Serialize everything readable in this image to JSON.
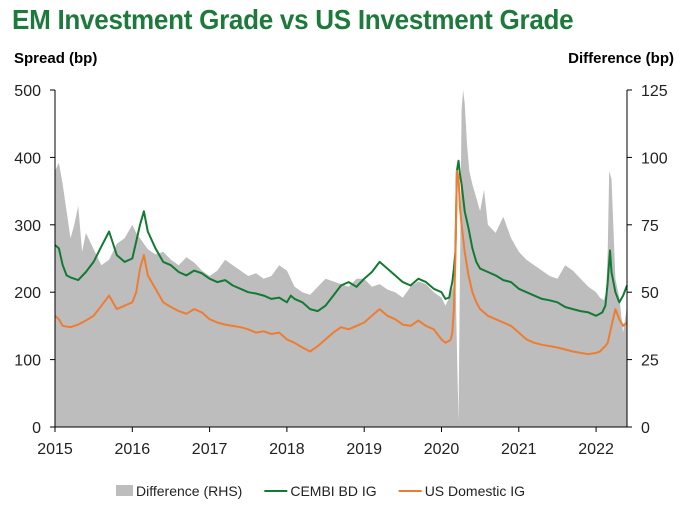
{
  "chart_data": {
    "type": "area+line",
    "title": "EM Investment Grade vs US Investment Grade",
    "ylabel": "Spread (bp)",
    "y2label": "Difference (bp)",
    "ylim": [
      0,
      500
    ],
    "y2lim": [
      0,
      125
    ],
    "yticks": [
      0,
      100,
      200,
      300,
      400,
      500
    ],
    "y2ticks": [
      0,
      25,
      50,
      75,
      100,
      125
    ],
    "xlim": [
      2015.0,
      2022.4
    ],
    "xticks": [
      2015,
      2016,
      2017,
      2018,
      2019,
      2020,
      2021,
      2022
    ],
    "colors": {
      "diff": "#bdbdbd",
      "cembi": "#137a33",
      "us": "#ee7d31"
    },
    "series": [
      {
        "name": "Difference (RHS)",
        "axis": "right",
        "style": "area",
        "x": [
          2015.0,
          2015.05,
          2015.1,
          2015.15,
          2015.2,
          2015.25,
          2015.3,
          2015.35,
          2015.4,
          2015.5,
          2015.6,
          2015.7,
          2015.8,
          2015.9,
          2016.0,
          2016.05,
          2016.1,
          2016.15,
          2016.2,
          2016.3,
          2016.4,
          2016.5,
          2016.6,
          2016.7,
          2016.8,
          2016.9,
          2017.0,
          2017.1,
          2017.2,
          2017.3,
          2017.4,
          2017.5,
          2017.6,
          2017.7,
          2017.8,
          2017.9,
          2018.0,
          2018.1,
          2018.2,
          2018.3,
          2018.4,
          2018.5,
          2018.6,
          2018.7,
          2018.8,
          2018.9,
          2019.0,
          2019.1,
          2019.2,
          2019.3,
          2019.4,
          2019.5,
          2019.6,
          2019.7,
          2019.8,
          2019.9,
          2020.0,
          2020.05,
          2020.1,
          2020.15,
          2020.18,
          2020.2,
          2020.22,
          2020.24,
          2020.26,
          2020.28,
          2020.3,
          2020.33,
          2020.36,
          2020.4,
          2020.45,
          2020.5,
          2020.55,
          2020.6,
          2020.7,
          2020.8,
          2020.9,
          2021.0,
          2021.1,
          2021.2,
          2021.3,
          2021.4,
          2021.5,
          2021.6,
          2021.7,
          2021.8,
          2021.9,
          2022.0,
          2022.05,
          2022.1,
          2022.13,
          2022.15,
          2022.17,
          2022.2,
          2022.25,
          2022.3,
          2022.35,
          2022.4
        ],
        "values": [
          95,
          98,
          90,
          80,
          70,
          75,
          82,
          65,
          72,
          66,
          60,
          62,
          68,
          70,
          75,
          72,
          70,
          68,
          66,
          64,
          65,
          62,
          60,
          63,
          61,
          58,
          56,
          58,
          62,
          60,
          58,
          56,
          57,
          55,
          56,
          60,
          58,
          52,
          50,
          49,
          52,
          55,
          54,
          53,
          52,
          55,
          55,
          52,
          53,
          51,
          50,
          48,
          52,
          54,
          53,
          50,
          48,
          45,
          48,
          52,
          57,
          30,
          2,
          60,
          118,
          125,
          120,
          105,
          95,
          90,
          85,
          80,
          88,
          75,
          72,
          78,
          70,
          65,
          62,
          60,
          58,
          56,
          55,
          60,
          58,
          55,
          52,
          50,
          48,
          47,
          50,
          65,
          95,
          92,
          55,
          48,
          35,
          45
        ]
      },
      {
        "name": "CEMBI BD IG",
        "axis": "left",
        "style": "line",
        "x": [
          2015.0,
          2015.05,
          2015.1,
          2015.15,
          2015.2,
          2015.3,
          2015.4,
          2015.5,
          2015.6,
          2015.7,
          2015.8,
          2015.9,
          2016.0,
          2016.05,
          2016.1,
          2016.15,
          2016.2,
          2016.3,
          2016.4,
          2016.5,
          2016.6,
          2016.7,
          2016.8,
          2016.9,
          2017.0,
          2017.1,
          2017.2,
          2017.3,
          2017.4,
          2017.5,
          2017.6,
          2017.7,
          2017.8,
          2017.9,
          2018.0,
          2018.05,
          2018.1,
          2018.2,
          2018.3,
          2018.4,
          2018.5,
          2018.6,
          2018.7,
          2018.8,
          2018.9,
          2019.0,
          2019.1,
          2019.2,
          2019.3,
          2019.4,
          2019.5,
          2019.6,
          2019.7,
          2019.8,
          2019.9,
          2020.0,
          2020.05,
          2020.1,
          2020.12,
          2020.14,
          2020.16,
          2020.18,
          2020.2,
          2020.22,
          2020.24,
          2020.26,
          2020.3,
          2020.35,
          2020.4,
          2020.45,
          2020.5,
          2020.6,
          2020.7,
          2020.8,
          2020.9,
          2021.0,
          2021.1,
          2021.2,
          2021.3,
          2021.4,
          2021.5,
          2021.6,
          2021.7,
          2021.8,
          2021.9,
          2022.0,
          2022.05,
          2022.08,
          2022.1,
          2022.12,
          2022.15,
          2022.18,
          2022.2,
          2022.25,
          2022.3,
          2022.35,
          2022.4
        ],
        "values": [
          270,
          265,
          240,
          225,
          222,
          218,
          230,
          245,
          268,
          290,
          255,
          245,
          250,
          275,
          300,
          320,
          290,
          265,
          245,
          240,
          230,
          225,
          232,
          228,
          220,
          215,
          218,
          210,
          205,
          200,
          198,
          195,
          190,
          192,
          185,
          195,
          190,
          185,
          175,
          172,
          180,
          195,
          210,
          215,
          208,
          220,
          230,
          245,
          235,
          225,
          215,
          210,
          220,
          215,
          205,
          200,
          190,
          192,
          205,
          215,
          235,
          260,
          380,
          395,
          375,
          360,
          320,
          295,
          265,
          245,
          235,
          230,
          225,
          218,
          215,
          205,
          200,
          195,
          190,
          188,
          185,
          178,
          175,
          172,
          170,
          165,
          168,
          170,
          175,
          180,
          215,
          262,
          230,
          200,
          185,
          195,
          210
        ]
      },
      {
        "name": "US Domestic IG",
        "axis": "left",
        "style": "line",
        "x": [
          2015.0,
          2015.05,
          2015.1,
          2015.2,
          2015.3,
          2015.4,
          2015.5,
          2015.6,
          2015.7,
          2015.8,
          2015.9,
          2016.0,
          2016.05,
          2016.1,
          2016.15,
          2016.2,
          2016.3,
          2016.4,
          2016.5,
          2016.6,
          2016.7,
          2016.8,
          2016.9,
          2017.0,
          2017.1,
          2017.2,
          2017.3,
          2017.4,
          2017.5,
          2017.6,
          2017.7,
          2017.8,
          2017.9,
          2018.0,
          2018.1,
          2018.2,
          2018.3,
          2018.4,
          2018.5,
          2018.6,
          2018.7,
          2018.8,
          2018.9,
          2019.0,
          2019.1,
          2019.2,
          2019.3,
          2019.4,
          2019.5,
          2019.6,
          2019.7,
          2019.8,
          2019.9,
          2020.0,
          2020.05,
          2020.1,
          2020.12,
          2020.14,
          2020.16,
          2020.18,
          2020.2,
          2020.22,
          2020.24,
          2020.26,
          2020.3,
          2020.35,
          2020.4,
          2020.45,
          2020.5,
          2020.6,
          2020.7,
          2020.8,
          2020.9,
          2021.0,
          2021.1,
          2021.2,
          2021.3,
          2021.4,
          2021.5,
          2021.6,
          2021.7,
          2021.8,
          2021.9,
          2022.0,
          2022.05,
          2022.1,
          2022.12,
          2022.15,
          2022.18,
          2022.2,
          2022.25,
          2022.3,
          2022.35,
          2022.4
        ],
        "values": [
          165,
          160,
          150,
          148,
          152,
          158,
          165,
          180,
          195,
          175,
          180,
          185,
          200,
          235,
          255,
          225,
          205,
          185,
          178,
          172,
          168,
          175,
          170,
          160,
          155,
          152,
          150,
          148,
          145,
          140,
          142,
          138,
          140,
          130,
          125,
          118,
          112,
          120,
          130,
          140,
          148,
          145,
          150,
          155,
          165,
          175,
          165,
          160,
          152,
          150,
          158,
          150,
          145,
          130,
          125,
          128,
          130,
          140,
          175,
          250,
          380,
          370,
          325,
          300,
          260,
          225,
          200,
          185,
          175,
          165,
          160,
          155,
          150,
          140,
          130,
          125,
          122,
          120,
          118,
          115,
          112,
          110,
          108,
          110,
          112,
          118,
          120,
          125,
          140,
          150,
          175,
          160,
          150,
          155
        ]
      }
    ]
  },
  "text": {
    "title": "EM Investment Grade vs US Investment Grade",
    "left_axis_title": "Spread (bp)",
    "right_axis_title": "Difference (bp)"
  }
}
